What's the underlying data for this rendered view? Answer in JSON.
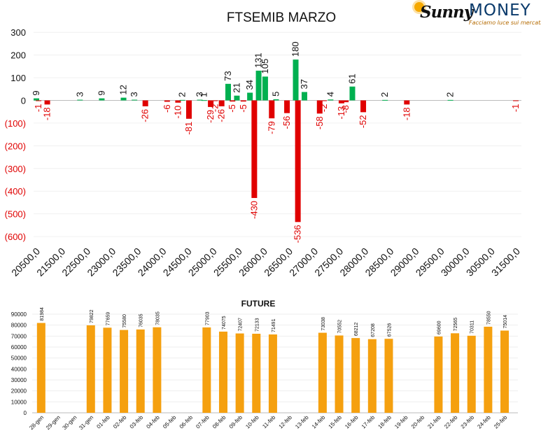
{
  "logo": {
    "brand_left": "Sunny",
    "brand_right": "MONEY",
    "tagline": "Facciamo luce sui mercati"
  },
  "chart_data": [
    {
      "type": "bar",
      "title": "FTSEMIB MARZO",
      "ylim": [
        -650,
        300
      ],
      "y_ticks": [
        "300",
        "200",
        "100",
        "0",
        "(100)",
        "(200)",
        "(300)",
        "(400)",
        "(500)",
        "(600)"
      ],
      "x_tick_labels": [
        "20500,0",
        "21500,0",
        "22500,0",
        "23000,0",
        "23500,0",
        "24000,0",
        "24500,0",
        "25000,0",
        "25500,0",
        "26000,0",
        "26500,0",
        "27000,0",
        "27500,0",
        "28000,0",
        "28500,0",
        "29000,0",
        "29500,0",
        "30000,0",
        "30500,0",
        "31500,0"
      ],
      "positive_color": "#00b050",
      "negative_color": "#e00000",
      "grid": true,
      "bars": [
        {
          "strike": 20500,
          "value": 9,
          "label": "9"
        },
        {
          "strike": 20750,
          "value": -18,
          "label": "-18"
        },
        {
          "strike": 20550,
          "value": -1,
          "label": "-1"
        },
        {
          "strike": 21500,
          "value": 3,
          "label": "3"
        },
        {
          "strike": 22000,
          "value": 9,
          "label": "9"
        },
        {
          "strike": 22500,
          "value": 12,
          "label": "12"
        },
        {
          "strike": 22750,
          "value": 3,
          "label": "3"
        },
        {
          "strike": 23000,
          "value": -26,
          "label": "-26"
        },
        {
          "strike": 23500,
          "value": -6,
          "label": "-6"
        },
        {
          "strike": 23750,
          "value": -10,
          "label": "-10"
        },
        {
          "strike": 23850,
          "value": 2,
          "label": "2"
        },
        {
          "strike": 24000,
          "value": -81,
          "label": "-81"
        },
        {
          "strike": 24250,
          "value": 3,
          "label": "3"
        },
        {
          "strike": 24350,
          "value": 1,
          "label": "1"
        },
        {
          "strike": 24500,
          "value": -29,
          "label": "-29"
        },
        {
          "strike": 24600,
          "value": -2,
          "label": "-2"
        },
        {
          "strike": 24750,
          "value": -26,
          "label": "-26"
        },
        {
          "strike": 24900,
          "value": 73,
          "label": "73"
        },
        {
          "strike": 25000,
          "value": -5,
          "label": "-5"
        },
        {
          "strike": 25100,
          "value": 21,
          "label": "21"
        },
        {
          "strike": 25250,
          "value": -5,
          "label": "-5"
        },
        {
          "strike": 25400,
          "value": 34,
          "label": "34"
        },
        {
          "strike": 25500,
          "value": -430,
          "label": "-430"
        },
        {
          "strike": 25600,
          "value": 131,
          "label": "131"
        },
        {
          "strike": 25750,
          "value": 105,
          "label": "105"
        },
        {
          "strike": 25900,
          "value": -79,
          "label": "-79"
        },
        {
          "strike": 26000,
          "value": 5,
          "label": "5"
        },
        {
          "strike": 26250,
          "value": -56,
          "label": "-56"
        },
        {
          "strike": 26450,
          "value": 180,
          "label": "180"
        },
        {
          "strike": 26500,
          "value": -536,
          "label": "-536"
        },
        {
          "strike": 26650,
          "value": 37,
          "label": "37"
        },
        {
          "strike": 27000,
          "value": -58,
          "label": "-58"
        },
        {
          "strike": 27100,
          "value": -2,
          "label": "-2"
        },
        {
          "strike": 27250,
          "value": 4,
          "label": "4"
        },
        {
          "strike": 27500,
          "value": -13,
          "label": "-13"
        },
        {
          "strike": 27600,
          "value": -8,
          "label": "-8"
        },
        {
          "strike": 27750,
          "value": 61,
          "label": "61"
        },
        {
          "strike": 28000,
          "value": -52,
          "label": "-52"
        },
        {
          "strike": 28500,
          "value": 2,
          "label": "2"
        },
        {
          "strike": 29000,
          "value": -18,
          "label": "-18"
        },
        {
          "strike": 30000,
          "value": 2,
          "label": "2"
        },
        {
          "strike": 31500,
          "value": -1,
          "label": "-1"
        }
      ]
    },
    {
      "type": "bar",
      "title": "FUTURE",
      "ylim": [
        0,
        90000
      ],
      "y_ticks": [
        "90000",
        "80000",
        "70000",
        "60000",
        "50000",
        "40000",
        "30000",
        "20000",
        "10000",
        "0"
      ],
      "color": "#f5a00f",
      "categories": [
        "28-gen",
        "29-gen",
        "30-gen",
        "31-gen",
        "01-feb",
        "02-feb",
        "03-feb",
        "04-feb",
        "05-feb",
        "06-feb",
        "07-feb",
        "08-feb",
        "09-feb",
        "10-feb",
        "11-feb",
        "12-feb",
        "13-feb",
        "14-feb",
        "15-feb",
        "16-feb",
        "17-feb",
        "18-feb",
        "19-feb",
        "20-feb",
        "21-feb",
        "22-feb",
        "23-feb",
        "24-feb",
        "25-feb"
      ],
      "values": [
        81984,
        null,
        null,
        79822,
        77659,
        75580,
        76035,
        78035,
        null,
        null,
        77903,
        74075,
        72407,
        72133,
        71491,
        null,
        null,
        73038,
        70552,
        68212,
        67208,
        67526,
        null,
        null,
        69600,
        72565,
        70311,
        78550,
        75014
      ],
      "labels": [
        "81984",
        "",
        "",
        "79822",
        "77659",
        "75580",
        "76035",
        "78035",
        "",
        "",
        "77903",
        "74075",
        "72407",
        "72133",
        "71491",
        "",
        "",
        "73038",
        "70552",
        "68212",
        "67208",
        "67526",
        "",
        "",
        "69600",
        "72565",
        "70311",
        "78550",
        "75014"
      ]
    }
  ]
}
